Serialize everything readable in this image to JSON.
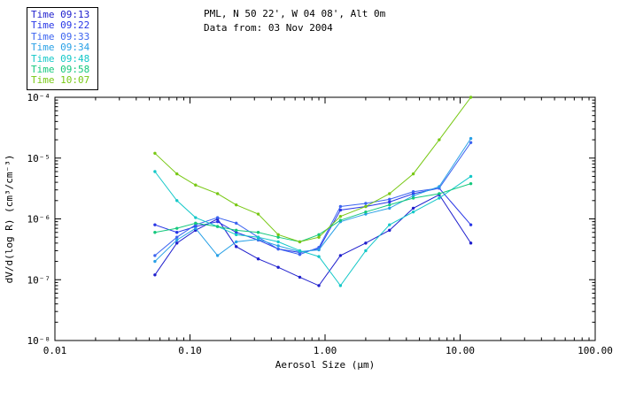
{
  "header": {
    "title": "PML, N 50 22', W 04 08', Alt 0m",
    "subtitle": "Data from: 03 Nov 2004"
  },
  "chart_data": {
    "type": "line",
    "title": "PML, N 50 22', W 04 08', Alt 0m",
    "subtitle": "Data from: 03 Nov 2004",
    "xlabel": "Aerosol Size (μm)",
    "ylabel": "dV/d(log R) (cm³/cm⁻³)",
    "x_scale": "log",
    "y_scale": "log",
    "xlim": [
      0.01,
      100.0
    ],
    "ylim": [
      1e-08,
      0.0001
    ],
    "grid": false,
    "legend_position": "top-left",
    "x_tick_values": [
      0.01,
      0.1,
      1.0,
      10.0,
      100.0
    ],
    "x_tick_labels": [
      "0.01",
      "0.10",
      "1.00",
      "10.00",
      "100.00"
    ],
    "y_tick_values": [
      1e-08,
      1e-07,
      1e-06,
      1e-05,
      0.0001
    ],
    "y_tick_labels": [
      "10⁻⁸",
      "10⁻⁷",
      "10⁻⁶",
      "10⁻⁵",
      "10⁻⁴"
    ],
    "x": [
      0.055,
      0.08,
      0.11,
      0.16,
      0.22,
      0.32,
      0.45,
      0.65,
      0.9,
      1.3,
      2.0,
      3.0,
      4.5,
      7.0,
      12.0
    ],
    "series": [
      {
        "name": "Time 09:13",
        "color": "#1e1ecd",
        "values": [
          1.2e-07,
          4e-07,
          6.5e-07,
          1e-06,
          3.5e-07,
          2.2e-07,
          1.6e-07,
          1.1e-07,
          8e-08,
          2.5e-07,
          4e-07,
          6.5e-07,
          1.5e-06,
          2.5e-06,
          4e-07
        ]
      },
      {
        "name": "Time 09:22",
        "color": "#2836e6",
        "values": [
          8e-07,
          6e-07,
          7.5e-07,
          9e-07,
          6e-07,
          4.5e-07,
          3.2e-07,
          2.8e-07,
          3.2e-07,
          1.4e-06,
          1.6e-06,
          1.9e-06,
          2.6e-06,
          3.2e-06,
          8e-07
        ]
      },
      {
        "name": "Time 09:33",
        "color": "#3c64f0",
        "values": [
          2.5e-07,
          5e-07,
          8e-07,
          1.05e-06,
          8.5e-07,
          5e-07,
          3.2e-07,
          2.6e-07,
          3.4e-07,
          1.6e-06,
          1.8e-06,
          2.1e-06,
          2.8e-06,
          3.2e-06,
          1.8e-05
        ]
      },
      {
        "name": "Time 09:34",
        "color": "#28a0e6",
        "values": [
          2e-07,
          4.5e-07,
          7e-07,
          2.5e-07,
          4.2e-07,
          4.6e-07,
          3.6e-07,
          2.9e-07,
          3.1e-07,
          9e-07,
          1.2e-06,
          1.5e-06,
          2.4e-06,
          3.4e-06,
          2.1e-05
        ]
      },
      {
        "name": "Time 09:48",
        "color": "#14c8c8",
        "values": [
          6e-06,
          2e-06,
          1.05e-06,
          7.5e-07,
          5.5e-07,
          5e-07,
          4.2e-07,
          3e-07,
          2.4e-07,
          8e-08,
          3e-07,
          8e-07,
          1.3e-06,
          2.2e-06,
          5e-06
        ]
      },
      {
        "name": "Time 09:58",
        "color": "#14c87d",
        "values": [
          6e-07,
          7e-07,
          8.5e-07,
          7.5e-07,
          6.5e-07,
          6e-07,
          5e-07,
          4.2e-07,
          5.5e-07,
          9.5e-07,
          1.3e-06,
          1.7e-06,
          2.2e-06,
          2.6e-06,
          3.8e-06
        ]
      },
      {
        "name": "Time 10:07",
        "color": "#78c814",
        "values": [
          1.2e-05,
          5.5e-06,
          3.6e-06,
          2.6e-06,
          1.7e-06,
          1.2e-06,
          5.5e-07,
          4.2e-07,
          5e-07,
          1.1e-06,
          1.6e-06,
          2.6e-06,
          5.5e-06,
          2e-05,
          0.0001
        ]
      }
    ]
  }
}
